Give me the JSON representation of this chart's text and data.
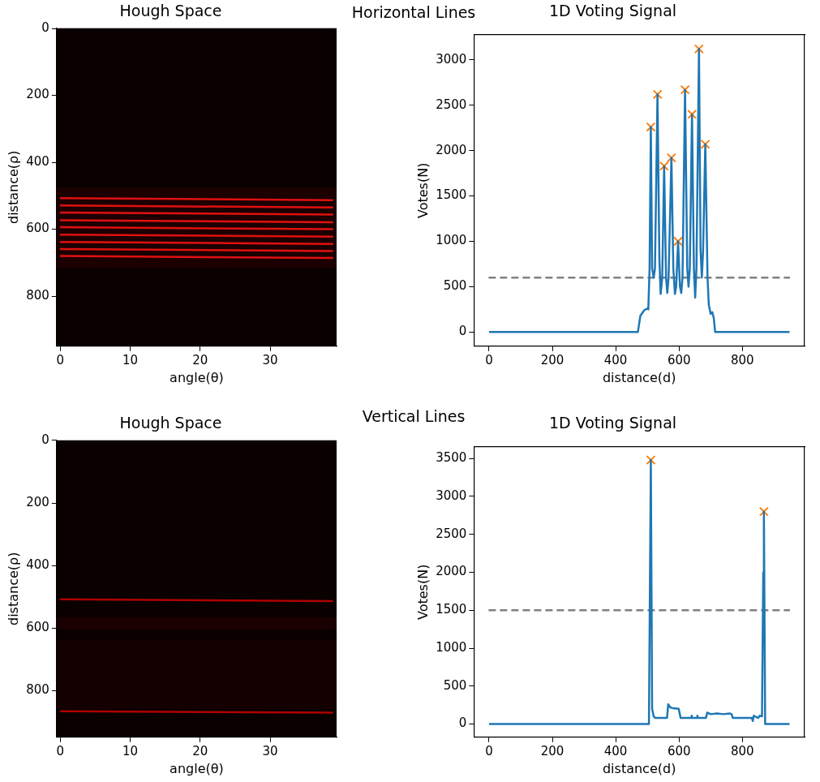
{
  "chart_data": [
    {
      "type": "line",
      "title": "Hough Space",
      "xlabel": "angle(θ)",
      "ylabel": "distance(ρ)",
      "annotations": [
        "Horizontal Lines"
      ],
      "xlim": [
        -0.5,
        39.5
      ],
      "ylim": [
        949.5,
        -0.5
      ],
      "xticks": [
        0,
        10,
        20,
        30
      ],
      "yticks": [
        0,
        200,
        400,
        600,
        800
      ],
      "grid": false,
      "legend": false,
      "marker": "none",
      "bands": [
        {
          "axis": "y",
          "from": 949.5,
          "to": -0.5,
          "color": "#0a0000"
        },
        {
          "axis": "y",
          "from": 475,
          "to": 715,
          "color": "#1c0000"
        }
      ],
      "series": [
        {
          "color": "#e01010",
          "x": [
            0,
            39
          ],
          "values": [
            507,
            513
          ]
        },
        {
          "color": "#e01010",
          "x": [
            0,
            39
          ],
          "values": [
            529,
            535
          ]
        },
        {
          "color": "#e01010",
          "x": [
            0,
            39
          ],
          "values": [
            550,
            556
          ]
        },
        {
          "color": "#e01010",
          "x": [
            0,
            39
          ],
          "values": [
            573,
            579
          ]
        },
        {
          "color": "#e01010",
          "x": [
            0,
            39
          ],
          "values": [
            594,
            600
          ]
        },
        {
          "color": "#e01010",
          "x": [
            0,
            39
          ],
          "values": [
            616,
            622
          ]
        },
        {
          "color": "#e01010",
          "x": [
            0,
            39
          ],
          "values": [
            638,
            644
          ]
        },
        {
          "color": "#e01010",
          "x": [
            0,
            39
          ],
          "values": [
            659,
            665
          ]
        },
        {
          "color": "#e01010",
          "x": [
            0,
            39
          ],
          "values": [
            680,
            686
          ]
        }
      ]
    },
    {
      "type": "line",
      "title": "1D Voting Signal",
      "xlabel": "distance(d)",
      "ylabel": "Votes(N)",
      "xlim": [
        -47.5,
        996.5
      ],
      "ylim": [
        -156,
        3277
      ],
      "xticks": [
        0,
        200,
        400,
        600,
        800
      ],
      "yticks": [
        0,
        500,
        1000,
        1500,
        2000,
        2500,
        3000
      ],
      "grid": false,
      "legend": false,
      "ref_lines": [
        {
          "axis": "y",
          "value": 600,
          "color": "#808080",
          "line_style": "dashed"
        }
      ],
      "series": [
        {
          "type": "line",
          "color": "#1f77b4",
          "marker": "none",
          "x": [
            0,
            470,
            478,
            490,
            500,
            503,
            507,
            511,
            515,
            520,
            524,
            532,
            538,
            542,
            547,
            553,
            559,
            563,
            567,
            576,
            582,
            587,
            591,
            597,
            603,
            607,
            611,
            619,
            626,
            630,
            634,
            641,
            647,
            651,
            655,
            663,
            668,
            672,
            676,
            683,
            690,
            694,
            700,
            705,
            710,
            714,
            949
          ],
          "values": [
            0,
            0,
            180,
            240,
            260,
            250,
            700,
            2260,
            700,
            600,
            700,
            2620,
            800,
            420,
            600,
            1830,
            600,
            430,
            600,
            1920,
            700,
            420,
            500,
            1000,
            500,
            430,
            600,
            2670,
            700,
            500,
            700,
            2400,
            700,
            380,
            700,
            3120,
            900,
            600,
            900,
            2070,
            600,
            300,
            200,
            220,
            150,
            0,
            0
          ]
        },
        {
          "type": "scatter",
          "color": "#ff7f0e",
          "marker": "cross",
          "x": [
            511,
            532,
            553,
            576,
            597,
            619,
            641,
            663,
            683
          ],
          "values": [
            2260,
            2620,
            1830,
            1920,
            1000,
            2670,
            2400,
            3120,
            2070
          ]
        }
      ]
    },
    {
      "type": "line",
      "title": "Hough Space",
      "xlabel": "angle(θ)",
      "ylabel": "distance(ρ)",
      "annotations": [
        "Vertical Lines"
      ],
      "xlim": [
        -0.5,
        39.5
      ],
      "ylim": [
        949.5,
        -0.5
      ],
      "xticks": [
        0,
        10,
        20,
        30
      ],
      "yticks": [
        0,
        200,
        400,
        600,
        800
      ],
      "grid": false,
      "legend": false,
      "marker": "none",
      "bands": [
        {
          "axis": "y",
          "from": 949.5,
          "to": -0.5,
          "color": "#0a0000"
        },
        {
          "axis": "y",
          "from": 565,
          "to": 605,
          "color": "#1a0000"
        },
        {
          "axis": "y",
          "from": 640,
          "to": 860,
          "color": "#140000"
        }
      ],
      "series": [
        {
          "color": "#b00000",
          "x": [
            0,
            39
          ],
          "values": [
            508,
            514
          ]
        },
        {
          "color": "#b00000",
          "x": [
            0,
            39
          ],
          "values": [
            866,
            871
          ]
        }
      ]
    },
    {
      "type": "line",
      "title": "1D Voting Signal",
      "xlabel": "distance(d)",
      "ylabel": "Votes(N)",
      "xlim": [
        -47.5,
        996.5
      ],
      "ylim": [
        -174,
        3654
      ],
      "xticks": [
        0,
        200,
        400,
        600,
        800
      ],
      "yticks": [
        0,
        500,
        1000,
        1500,
        2000,
        2500,
        3000,
        3500
      ],
      "grid": false,
      "legend": false,
      "ref_lines": [
        {
          "axis": "y",
          "value": 1500,
          "color": "#808080",
          "line_style": "dashed"
        }
      ],
      "series": [
        {
          "type": "line",
          "color": "#1f77b4",
          "marker": "none",
          "x": [
            0,
            505,
            511,
            515,
            520,
            525,
            562,
            566,
            572,
            580,
            599,
            605,
            638,
            640,
            642,
            656,
            658,
            660,
            685,
            689,
            700,
            720,
            740,
            760,
            766,
            770,
            830,
            833,
            836,
            850,
            855,
            862,
            866,
            868,
            872,
            949
          ],
          "values": [
            0,
            0,
            3480,
            200,
            100,
            80,
            80,
            260,
            220,
            210,
            200,
            80,
            80,
            110,
            80,
            80,
            110,
            80,
            80,
            150,
            130,
            140,
            130,
            140,
            130,
            80,
            80,
            40,
            110,
            80,
            110,
            100,
            2000,
            2800,
            0,
            0
          ]
        },
        {
          "type": "scatter",
          "color": "#ff7f0e",
          "marker": "cross",
          "x": [
            511,
            868
          ],
          "values": [
            3480,
            2800
          ]
        }
      ]
    }
  ]
}
